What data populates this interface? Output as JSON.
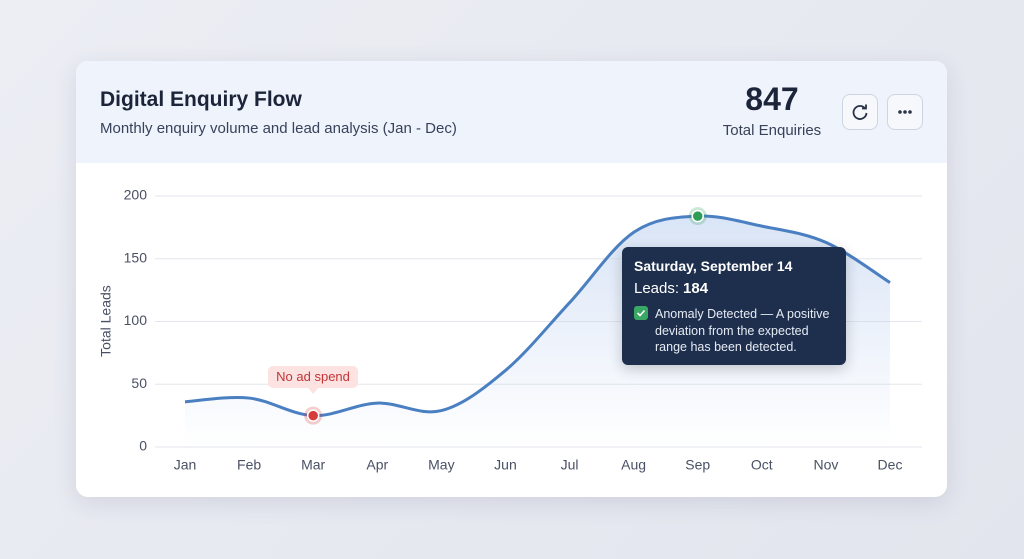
{
  "header": {
    "title": "Digital Enquiry Flow",
    "subtitle": "Monthly enquiry volume and lead analysis (Jan - Dec)",
    "total": 847,
    "total_label": "Total Enquiries"
  },
  "chart_data": {
    "type": "line",
    "y_label": "Total Leads",
    "categories": [
      "Jan",
      "Feb",
      "Mar",
      "Apr",
      "May",
      "Jun",
      "Jul",
      "Aug",
      "Sep",
      "Oct",
      "Nov",
      "Dec"
    ],
    "series": [
      {
        "name": "Leads",
        "color": "#4a7fc1",
        "values": [
          36,
          39,
          25,
          35,
          29,
          61,
          115,
          171,
          184,
          176,
          163,
          131
        ]
      }
    ],
    "ylim": [
      0,
      200
    ],
    "yticks": [
      0,
      50,
      100,
      150,
      200
    ],
    "grid": true,
    "markers": [
      {
        "x": "Mar",
        "color": "#d63c3c"
      },
      {
        "x": "Sep",
        "color": "#2e9e57"
      }
    ],
    "annotation": {
      "x": "Mar",
      "text": "No ad spend"
    },
    "tooltip": {
      "x": "Sep",
      "title": "Saturday, September 14",
      "label": "Leads:",
      "value": 184,
      "message": "Anomaly Detected — A positive deviation from the expected range has been detected."
    }
  }
}
